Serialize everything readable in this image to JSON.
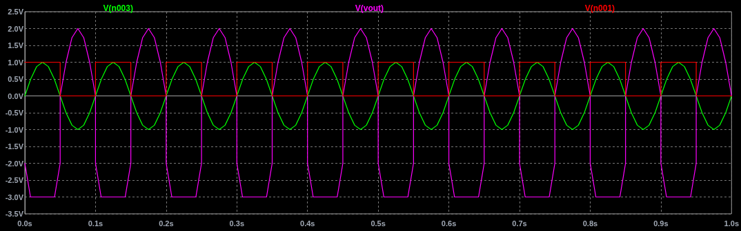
{
  "chart_data": {
    "type": "line",
    "marker": "none",
    "line_style": "solid",
    "grid": true,
    "legend": "top",
    "xlim": [
      0,
      1
    ],
    "xticks": [
      {
        "value": 0,
        "label": "0.0s"
      },
      {
        "value": 0.1,
        "label": "0.1s"
      },
      {
        "value": 0.2,
        "label": "0.2s"
      },
      {
        "value": 0.3,
        "label": "0.3s"
      },
      {
        "value": 0.4,
        "label": "0.4s"
      },
      {
        "value": 0.5,
        "label": "0.5s"
      },
      {
        "value": 0.6,
        "label": "0.6s"
      },
      {
        "value": 0.7,
        "label": "0.7s"
      },
      {
        "value": 0.8,
        "label": "0.8s"
      },
      {
        "value": 0.9,
        "label": "0.9s"
      },
      {
        "value": 1,
        "label": "1.0s"
      }
    ],
    "ylim": [
      -3.5,
      2.5
    ],
    "yticks": [
      {
        "value": -3.5,
        "label": "-3.5V"
      },
      {
        "value": -3,
        "label": "-3.0V"
      },
      {
        "value": -2.5,
        "label": "-2.5V"
      },
      {
        "value": -2,
        "label": "-2.0V"
      },
      {
        "value": -1.5,
        "label": "-1.5V"
      },
      {
        "value": -1,
        "label": "-1.0V"
      },
      {
        "value": -0.5,
        "label": "-0.5V"
      },
      {
        "value": 0,
        "label": "0.0V"
      },
      {
        "value": 0.5,
        "label": "0.5V"
      },
      {
        "value": 1,
        "label": "1.0V"
      },
      {
        "value": 1.5,
        "label": "1.5V"
      },
      {
        "value": 2,
        "label": "2.0V"
      },
      {
        "value": 2.5,
        "label": "2.5V"
      }
    ],
    "series": [
      {
        "name": "V(n003)",
        "color": "#00ff00",
        "x": [
          0,
          0.0083,
          0.0167,
          0.025,
          0.0333,
          0.0417,
          0.05,
          0.0583,
          0.0667,
          0.075,
          0.0833,
          0.0917,
          0.1,
          0.1083,
          0.1167,
          0.125,
          0.1333,
          0.1417,
          0.15,
          0.1583,
          0.1667,
          0.175,
          0.1833,
          0.1917,
          0.2,
          0.2083,
          0.2167,
          0.225,
          0.2333,
          0.2417,
          0.25,
          0.2583,
          0.2667,
          0.275,
          0.2833,
          0.2917,
          0.3,
          0.3083,
          0.3167,
          0.325,
          0.3333,
          0.3417,
          0.35,
          0.3583,
          0.3667,
          0.375,
          0.3833,
          0.3917,
          0.4,
          0.4083,
          0.4167,
          0.425,
          0.4333,
          0.4417,
          0.45,
          0.4583,
          0.4667,
          0.475,
          0.4833,
          0.4917,
          0.5,
          0.5083,
          0.5167,
          0.525,
          0.5333,
          0.5417,
          0.55,
          0.5583,
          0.5667,
          0.575,
          0.5833,
          0.5917,
          0.6,
          0.6083,
          0.6167,
          0.625,
          0.6333,
          0.6417,
          0.65,
          0.6583,
          0.6667,
          0.675,
          0.6833,
          0.6917,
          0.7,
          0.7083,
          0.7167,
          0.725,
          0.7333,
          0.7417,
          0.75,
          0.7583,
          0.7667,
          0.775,
          0.7833,
          0.7917,
          0.8,
          0.8083,
          0.8167,
          0.825,
          0.8333,
          0.8417,
          0.85,
          0.8583,
          0.8667,
          0.875,
          0.8833,
          0.8917,
          0.9,
          0.9083,
          0.9167,
          0.925,
          0.9333,
          0.9417,
          0.95,
          0.9583,
          0.9667,
          0.975,
          0.9833,
          0.9917,
          1
        ],
        "values": [
          0,
          0.5,
          0.87,
          1,
          0.87,
          0.5,
          0,
          -0.5,
          -0.87,
          -1,
          -0.87,
          -0.5,
          0,
          0.5,
          0.87,
          1,
          0.87,
          0.5,
          0,
          -0.5,
          -0.87,
          -1,
          -0.87,
          -0.5,
          0,
          0.5,
          0.87,
          1,
          0.87,
          0.5,
          0,
          -0.5,
          -0.87,
          -1,
          -0.87,
          -0.5,
          0,
          0.5,
          0.87,
          1,
          0.87,
          0.5,
          0,
          -0.5,
          -0.87,
          -1,
          -0.87,
          -0.5,
          0,
          0.5,
          0.87,
          1,
          0.87,
          0.5,
          0,
          -0.5,
          -0.87,
          -1,
          -0.87,
          -0.5,
          0,
          0.5,
          0.87,
          1,
          0.87,
          0.5,
          0,
          -0.5,
          -0.87,
          -1,
          -0.87,
          -0.5,
          0,
          0.5,
          0.87,
          1,
          0.87,
          0.5,
          0,
          -0.5,
          -0.87,
          -1,
          -0.87,
          -0.5,
          0,
          0.5,
          0.87,
          1,
          0.87,
          0.5,
          0,
          -0.5,
          -0.87,
          -1,
          -0.87,
          -0.5,
          0,
          0.5,
          0.87,
          1,
          0.87,
          0.5,
          0,
          -0.5,
          -0.87,
          -1,
          -0.87,
          -0.5,
          0,
          0.5,
          0.87,
          1,
          0.87,
          0.5,
          0,
          -0.5,
          -0.87,
          -1,
          -0.87,
          -0.5,
          0
        ]
      },
      {
        "name": "V(vout)",
        "color": "#ff00ff",
        "x": [
          0,
          0.008,
          0.042,
          0.05,
          0.05,
          0.0583,
          0.0667,
          0.075,
          0.0833,
          0.0917,
          0.1,
          0.1,
          0.108,
          0.142,
          0.15,
          0.15,
          0.1583,
          0.1667,
          0.175,
          0.1833,
          0.1917,
          0.2,
          0.2,
          0.208,
          0.242,
          0.25,
          0.25,
          0.2583,
          0.2667,
          0.275,
          0.2833,
          0.2917,
          0.3,
          0.3,
          0.308,
          0.342,
          0.35,
          0.35,
          0.3583,
          0.3667,
          0.375,
          0.3833,
          0.3917,
          0.4,
          0.4,
          0.408,
          0.442,
          0.45,
          0.45,
          0.4583,
          0.4667,
          0.475,
          0.4833,
          0.4917,
          0.5,
          0.5,
          0.508,
          0.542,
          0.55,
          0.55,
          0.5583,
          0.5667,
          0.575,
          0.5833,
          0.5917,
          0.6,
          0.6,
          0.608,
          0.642,
          0.65,
          0.65,
          0.6583,
          0.6667,
          0.675,
          0.6833,
          0.6917,
          0.7,
          0.7,
          0.708,
          0.742,
          0.75,
          0.75,
          0.7583,
          0.7667,
          0.775,
          0.7833,
          0.7917,
          0.8,
          0.8,
          0.808,
          0.842,
          0.85,
          0.85,
          0.8583,
          0.8667,
          0.875,
          0.8833,
          0.8917,
          0.9,
          0.9,
          0.908,
          0.942,
          0.95,
          0.95,
          0.9583,
          0.9667,
          0.975,
          0.9833,
          0.9917,
          1
        ],
        "values": [
          -2,
          -3,
          -3,
          -2,
          0,
          1,
          1.73,
          2,
          1.73,
          1,
          0,
          -2,
          -3,
          -3,
          -2,
          0,
          1,
          1.73,
          2,
          1.73,
          1,
          0,
          -2,
          -3,
          -3,
          -2,
          0,
          1,
          1.73,
          2,
          1.73,
          1,
          0,
          -2,
          -3,
          -3,
          -2,
          0,
          1,
          1.73,
          2,
          1.73,
          1,
          0,
          -2,
          -3,
          -3,
          -2,
          0,
          1,
          1.73,
          2,
          1.73,
          1,
          0,
          -2,
          -3,
          -3,
          -2,
          0,
          1,
          1.73,
          2,
          1.73,
          1,
          0,
          -2,
          -3,
          -3,
          -2,
          0,
          1,
          1.73,
          2,
          1.73,
          1,
          0,
          -2,
          -3,
          -3,
          -2,
          0,
          1,
          1.73,
          2,
          1.73,
          1,
          0,
          -2,
          -3,
          -3,
          -2,
          0,
          1,
          1.73,
          2,
          1.73,
          1,
          0,
          -2,
          -3,
          -3,
          -2,
          0,
          1,
          1.73,
          2,
          1.73,
          1,
          0
        ]
      },
      {
        "name": "V(n001)",
        "color": "#ff0000",
        "x": [
          0,
          0.05,
          0.05,
          0.1,
          0.1,
          0.15,
          0.15,
          0.2,
          0.2,
          0.25,
          0.25,
          0.3,
          0.3,
          0.35,
          0.35,
          0.4,
          0.4,
          0.45,
          0.45,
          0.5,
          0.5,
          0.55,
          0.55,
          0.6,
          0.6,
          0.65,
          0.65,
          0.7,
          0.7,
          0.75,
          0.75,
          0.8,
          0.8,
          0.85,
          0.85,
          0.9,
          0.9,
          0.95,
          0.95,
          1
        ],
        "values": [
          1,
          1,
          0,
          0,
          1,
          1,
          0,
          0,
          1,
          1,
          0,
          0,
          1,
          1,
          0,
          0,
          1,
          1,
          0,
          0,
          1,
          1,
          0,
          0,
          1,
          1,
          0,
          0,
          1,
          1,
          0,
          0,
          1,
          1,
          0,
          0,
          1,
          1,
          0,
          0
        ]
      }
    ]
  }
}
